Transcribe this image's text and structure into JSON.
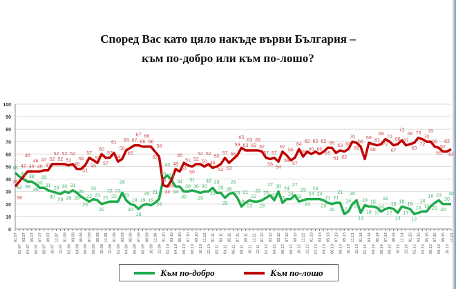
{
  "title_line1": "Според Вас като цяло накъде върви България –",
  "title_line2": "към по-добро или към по-лошо?",
  "chart_data": {
    "type": "line",
    "title": "Според Вас като цяло накъде върви България – към по-добро или към по-лошо?",
    "xlabel": "",
    "ylabel": "",
    "ylim": [
      0,
      100
    ],
    "yticks": [
      0,
      10,
      20,
      30,
      40,
      50,
      60,
      70,
      80,
      90,
      100
    ],
    "grid": true,
    "legend": "bottom",
    "x_start": "01.07",
    "series": [
      {
        "name": "Към по-добро",
        "color": "#1faa4a",
        "label_color": "#3cb463",
        "values": [
          45,
          42,
          40,
          38,
          38,
          36,
          33,
          33,
          31,
          30,
          29,
          28,
          30,
          29,
          31,
          29,
          26,
          24,
          22,
          24,
          23,
          20,
          21,
          22,
          22,
          22,
          29,
          23,
          20,
          19,
          16,
          19,
          20,
          19,
          21,
          24,
          40,
          43,
          39,
          34,
          34,
          30,
          30,
          31,
          30,
          29,
          30,
          30,
          33,
          29,
          29,
          25,
          28,
          29,
          25,
          18,
          21,
          23,
          22,
          22,
          23,
          25,
          27,
          23,
          30,
          21,
          24,
          24,
          27,
          22,
          23,
          24,
          24,
          24,
          24,
          23,
          21,
          20,
          21,
          21,
          12,
          14,
          20,
          23,
          13,
          19,
          18,
          18,
          17,
          14,
          16,
          17,
          16,
          13,
          18,
          17,
          16,
          12,
          13,
          14,
          14,
          18,
          21,
          23,
          20,
          20,
          20
        ]
      },
      {
        "name": "Към по-лошо",
        "color": "#c00000",
        "label_color": "#d04a4a",
        "values": [
          34,
          38,
          42,
          46,
          46,
          46,
          46,
          47,
          47,
          52,
          52,
          52,
          52,
          51,
          52,
          48,
          48,
          51,
          57,
          55,
          53,
          60,
          57,
          57,
          61,
          54,
          56,
          63,
          65,
          67,
          67,
          66,
          66,
          66,
          62,
          58,
          35,
          34,
          39,
          48,
          46,
          53,
          51,
          50,
          52,
          52,
          50,
          52,
          49,
          50,
          52,
          57,
          53,
          56,
          59,
          65,
          63,
          63,
          63,
          63,
          62,
          57,
          56,
          57,
          54,
          62,
          59,
          55,
          57,
          64,
          58,
          62,
          60,
          62,
          60,
          62,
          65,
          65,
          61,
          63,
          62,
          64,
          70,
          69,
          66,
          56,
          69,
          68,
          67,
          68,
          72,
          70,
          67,
          68,
          71,
          67,
          68,
          69,
          73,
          72,
          70,
          70,
          66,
          65,
          62,
          62,
          64
        ]
      }
    ]
  },
  "legend": {
    "better": "Към по-добро",
    "worse": "Към по-лошо"
  }
}
